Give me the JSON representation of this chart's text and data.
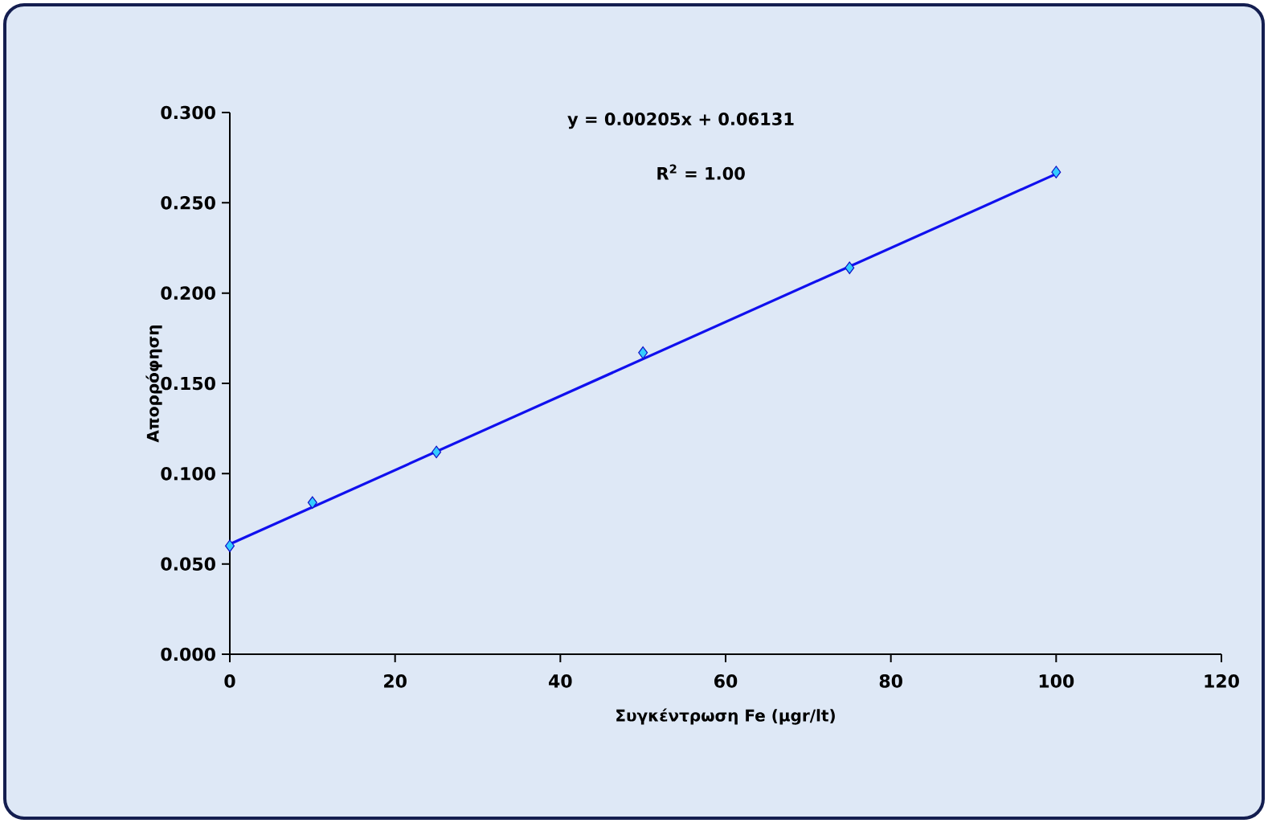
{
  "chart_data": {
    "type": "scatter",
    "xlabel": "Συγκέντρωση Fe (μgr/lt)",
    "ylabel": "Απορρόφηση",
    "annotations": [
      "y = 0.00205x + 0.06131",
      "R$^{2}$ = 1.00"
    ],
    "series": [
      {
        "type": "line",
        "color": "#1010ee",
        "x": [
          0,
          100
        ],
        "values": [
          0.061,
          0.266
        ],
        "marker": "none",
        "line_style": "solid"
      },
      {
        "type": "scatter",
        "color": "#33ccff",
        "x": [
          0,
          10,
          25,
          50,
          75,
          100
        ],
        "values": [
          0.06,
          0.084,
          0.112,
          0.167,
          0.214,
          0.267
        ],
        "marker": "diamond"
      }
    ],
    "xlim": [
      0,
      120
    ],
    "xticks": [
      0,
      20,
      40,
      60,
      80,
      100,
      120
    ],
    "ylim": [
      0,
      0.3
    ],
    "yticks": [
      {
        "value": 0,
        "label": "0.000"
      },
      {
        "value": 0.05,
        "label": "0.050"
      },
      {
        "value": 0.1,
        "label": "0.100"
      },
      {
        "value": 0.15,
        "label": "0.150"
      },
      {
        "value": 0.2,
        "label": "0.200"
      },
      {
        "value": 0.25,
        "label": "0.250"
      },
      {
        "value": 0.3,
        "label": "0.300"
      }
    ],
    "grid": false
  }
}
